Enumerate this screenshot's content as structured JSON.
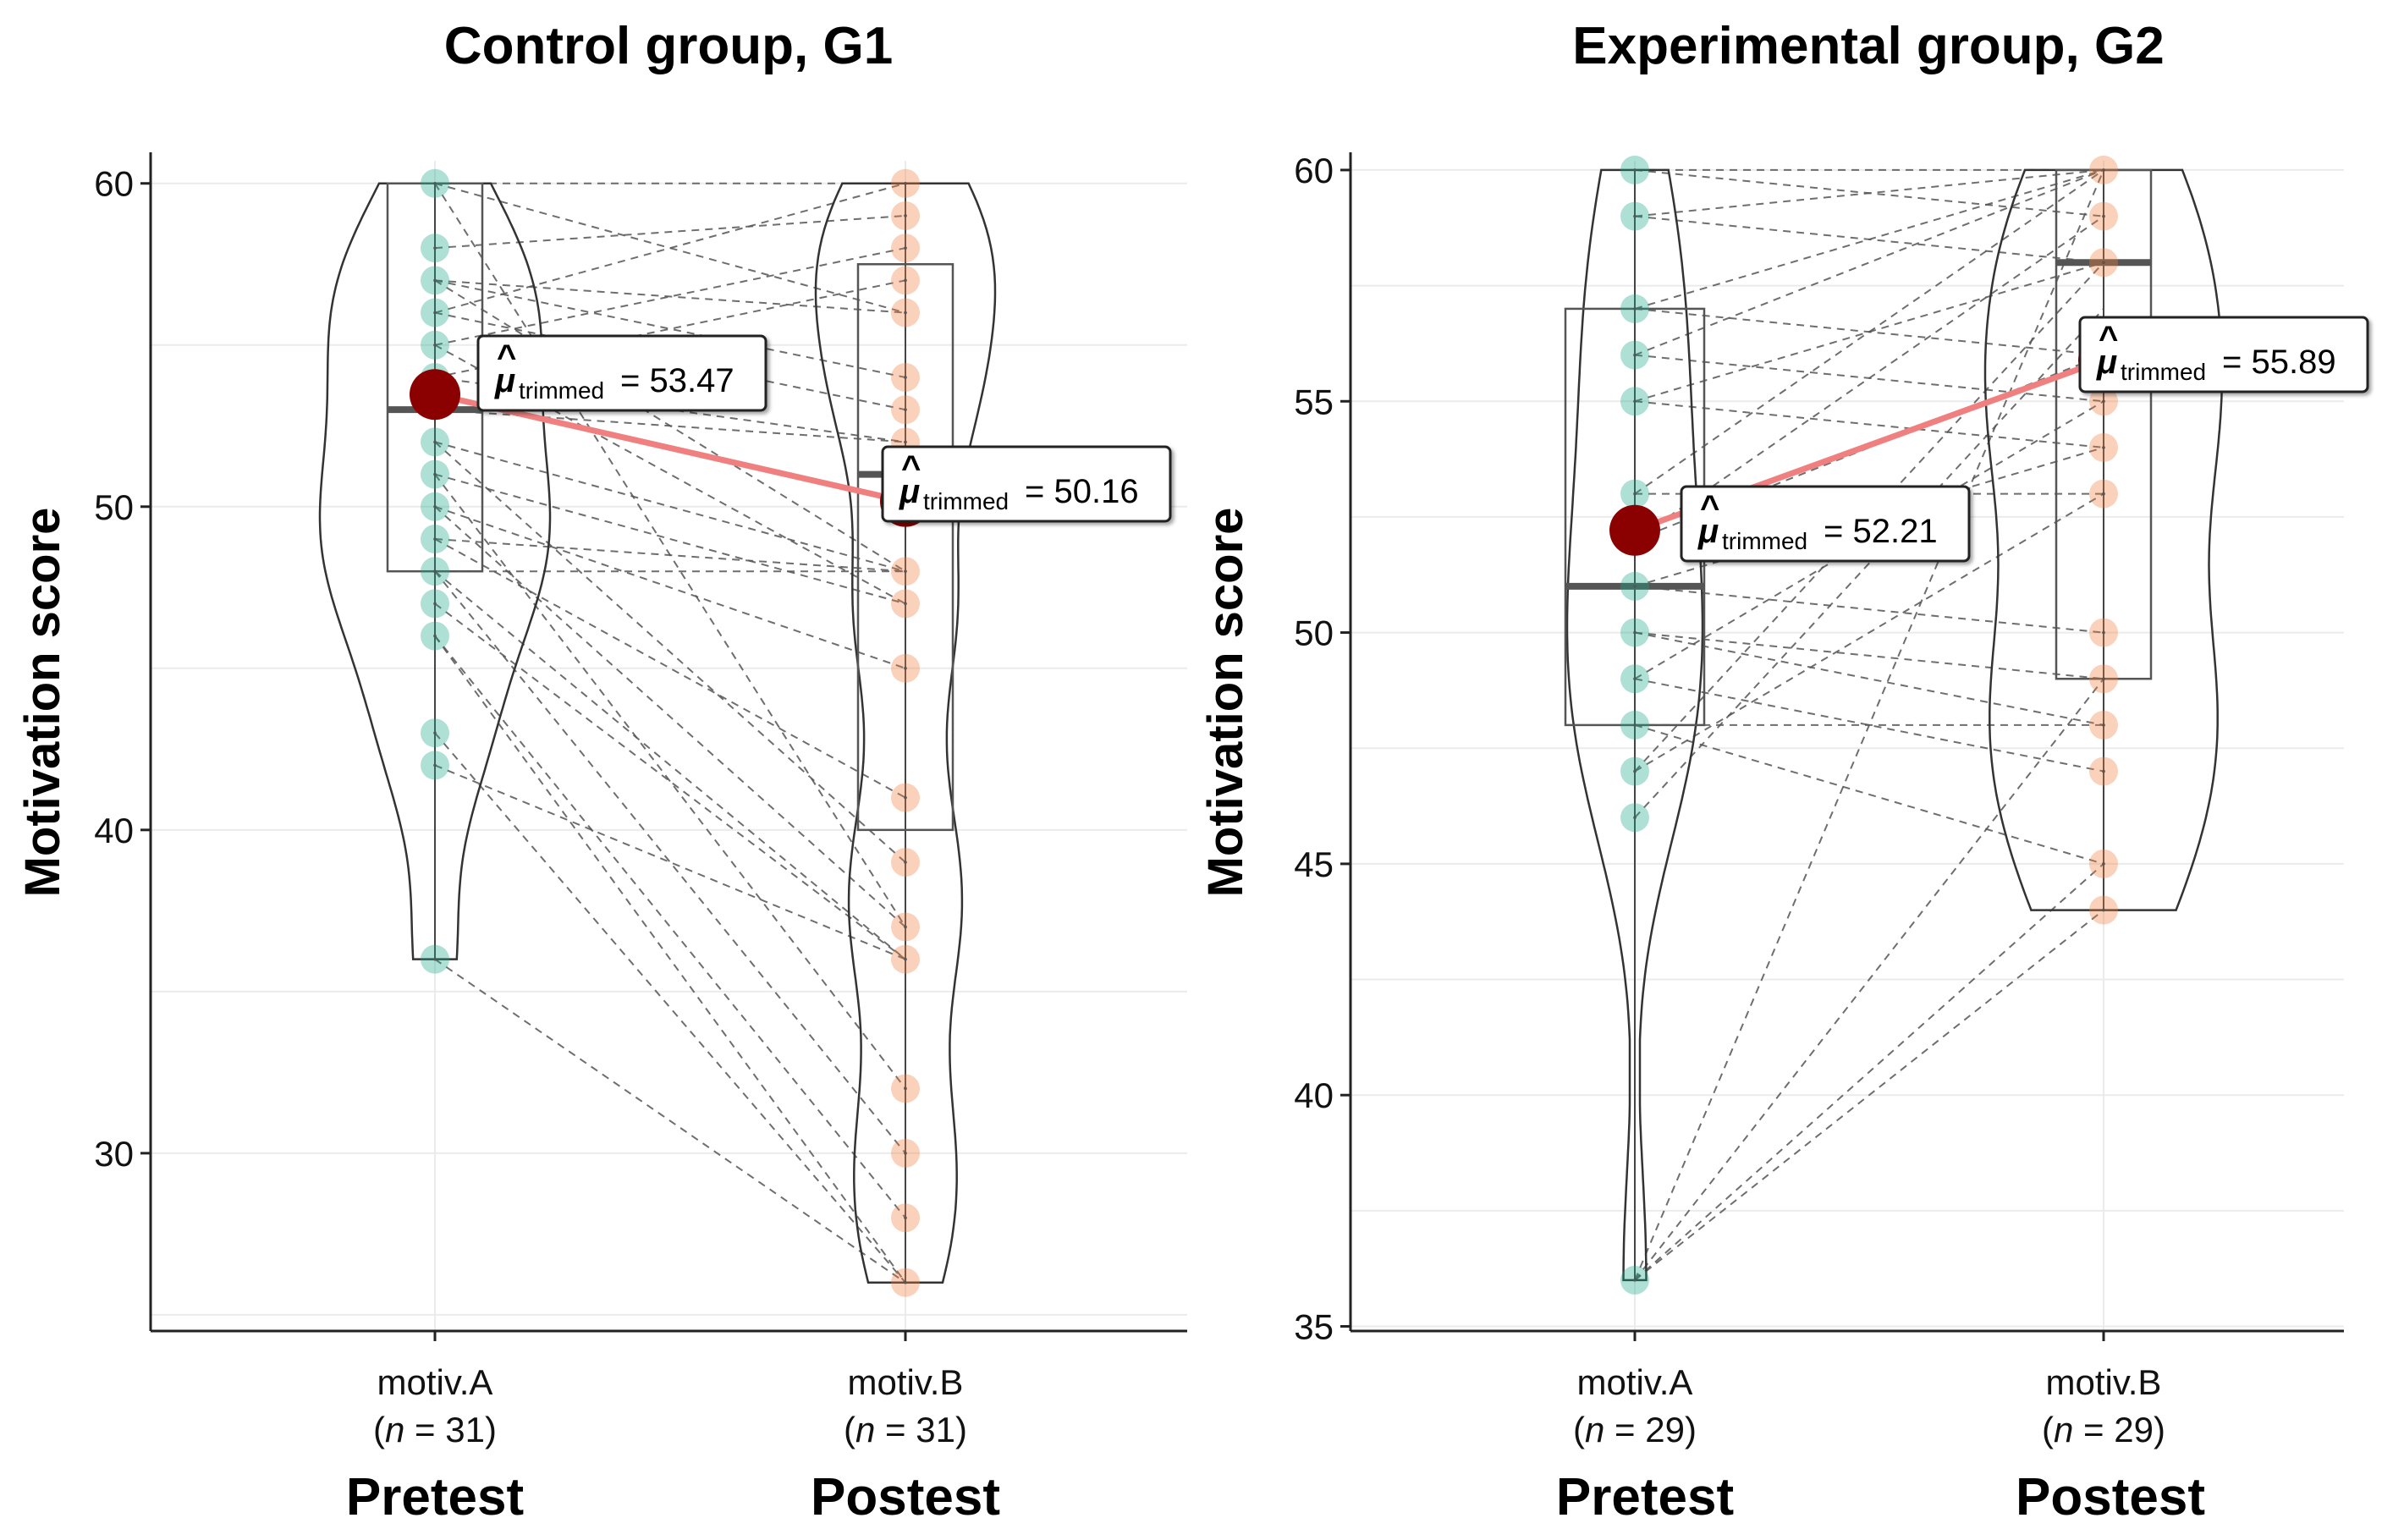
{
  "chart_data": [
    {
      "type": "violin",
      "title": "Control group, G1",
      "ylabel": "Motivation score",
      "ylim": [
        24.5,
        60.7
      ],
      "yticks": [
        30,
        40,
        50,
        60
      ],
      "gridlines": [
        25,
        30,
        35,
        40,
        45,
        50,
        55,
        60
      ],
      "xlabels": [
        "Pretest",
        "Postest"
      ],
      "categories": [
        {
          "name": "motiv.A",
          "n_prefix": "(",
          "n_italic": "n",
          "n_suffix": " = 31)",
          "color": "#1aa687",
          "points": [
            60,
            58,
            57,
            56,
            55,
            54,
            52,
            51,
            50,
            49,
            48,
            47,
            46,
            43,
            42,
            36
          ],
          "box": {
            "q1": 48,
            "median": 53,
            "q3": 60,
            "min": 36,
            "max": 60
          },
          "mean": 53.47,
          "label_name": "μ",
          "label_sub": "trimmed",
          "label_value": "= 53.47"
        },
        {
          "name": "motiv.B",
          "n_prefix": "(",
          "n_italic": "n",
          "n_suffix": " = 31)",
          "color": "#f07b3a",
          "points": [
            60,
            59,
            58,
            57,
            56,
            54,
            53,
            52,
            48,
            47,
            45,
            41,
            39,
            37,
            36,
            32,
            30,
            28,
            26
          ],
          "box": {
            "q1": 40,
            "median": 51,
            "q3": 57.5,
            "min": 26,
            "max": 60
          },
          "mean": 50.16,
          "label_name": "μ",
          "label_sub": "trimmed",
          "label_value": "= 50.16"
        }
      ],
      "pairs": [
        [
          60,
          60
        ],
        [
          60,
          56
        ],
        [
          58,
          59
        ],
        [
          57,
          54
        ],
        [
          57,
          48
        ],
        [
          56,
          60
        ],
        [
          56,
          53
        ],
        [
          55,
          58
        ],
        [
          54,
          57
        ],
        [
          54,
          52
        ],
        [
          53,
          52
        ],
        [
          52,
          48
        ],
        [
          52,
          39
        ],
        [
          51,
          47
        ],
        [
          51,
          32
        ],
        [
          50,
          45
        ],
        [
          50,
          37
        ],
        [
          49,
          48
        ],
        [
          49,
          41
        ],
        [
          48,
          30
        ],
        [
          48,
          36
        ],
        [
          48,
          48
        ],
        [
          47,
          36
        ],
        [
          46,
          28
        ],
        [
          46,
          26
        ],
        [
          43,
          26
        ],
        [
          42,
          36
        ],
        [
          36,
          26
        ],
        [
          60,
          37
        ],
        [
          57,
          56
        ],
        [
          55,
          47
        ]
      ]
    },
    {
      "type": "violin",
      "title": "Experimental group, G2",
      "ylabel": "Motivation score",
      "ylim": [
        34.9,
        60.2
      ],
      "yticks": [
        35,
        40,
        45,
        50,
        55,
        60
      ],
      "gridlines": [
        35,
        37.5,
        40,
        42.5,
        45,
        47.5,
        50,
        52.5,
        55,
        57.5,
        60
      ],
      "xlabels": [
        "Pretest",
        "Postest"
      ],
      "categories": [
        {
          "name": "motiv.A",
          "n_prefix": "(",
          "n_italic": "n",
          "n_suffix": " = 29)",
          "color": "#1aa687",
          "points": [
            60,
            59,
            57,
            56,
            55,
            53,
            52,
            51,
            50,
            49,
            48,
            47,
            46,
            36
          ],
          "box": {
            "q1": 48,
            "median": 51,
            "q3": 57,
            "min": 36,
            "max": 60
          },
          "mean": 52.21,
          "label_name": "μ",
          "label_sub": "trimmed",
          "label_value": "= 52.21"
        },
        {
          "name": "motiv.B",
          "n_prefix": "(",
          "n_italic": "n",
          "n_suffix": " = 29)",
          "color": "#f07b3a",
          "points": [
            60,
            59,
            58,
            56,
            55,
            54,
            53,
            50,
            49,
            48,
            47,
            45,
            44
          ],
          "box": {
            "q1": 49,
            "median": 58,
            "q3": 60,
            "min": 44,
            "max": 60
          },
          "mean": 55.89,
          "label_name": "μ",
          "label_sub": "trimmed",
          "label_value": "= 55.89"
        }
      ],
      "pairs": [
        [
          60,
          60
        ],
        [
          60,
          59
        ],
        [
          59,
          60
        ],
        [
          59,
          58
        ],
        [
          57,
          60
        ],
        [
          57,
          56
        ],
        [
          56,
          60
        ],
        [
          56,
          55
        ],
        [
          55,
          58
        ],
        [
          55,
          54
        ],
        [
          53,
          60
        ],
        [
          53,
          53
        ],
        [
          52,
          59
        ],
        [
          52,
          56
        ],
        [
          51,
          54
        ],
        [
          51,
          50
        ],
        [
          50,
          48
        ],
        [
          50,
          49
        ],
        [
          49,
          55
        ],
        [
          49,
          47
        ],
        [
          48,
          48
        ],
        [
          48,
          45
        ],
        [
          47,
          58
        ],
        [
          47,
          53
        ],
        [
          46,
          57
        ],
        [
          36,
          44
        ],
        [
          36,
          49
        ],
        [
          36,
          60
        ],
        [
          36,
          45
        ]
      ]
    }
  ]
}
